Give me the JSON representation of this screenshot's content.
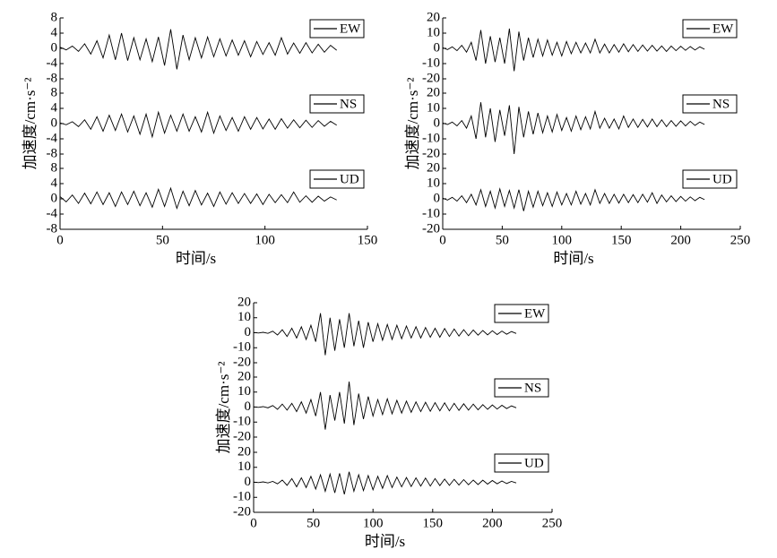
{
  "chart_data": [
    {
      "type": "line",
      "x_label": "时间/s",
      "y_label": "加速度/cm·s⁻²",
      "xlim": [
        0,
        150
      ],
      "xticks": [
        0,
        50,
        100,
        150
      ],
      "x": [
        0,
        3,
        6,
        9,
        12,
        15,
        18,
        21,
        24,
        27,
        30,
        33,
        36,
        39,
        42,
        45,
        48,
        51,
        54,
        57,
        60,
        63,
        66,
        69,
        72,
        75,
        78,
        81,
        84,
        87,
        90,
        93,
        96,
        99,
        102,
        105,
        108,
        111,
        114,
        117,
        120,
        123,
        126,
        129,
        132,
        135
      ],
      "series": [
        {
          "name": "EW",
          "color": "#000000",
          "ylim": [
            -8,
            8
          ],
          "yticks": [
            -8,
            -4,
            0,
            4,
            8
          ],
          "values": [
            0.3,
            -0.4,
            0.6,
            -0.8,
            1.2,
            -1.5,
            2,
            -2.5,
            3.5,
            -3,
            4,
            -3.2,
            2.8,
            -3,
            2.5,
            -3.5,
            3,
            -4.5,
            5,
            -5.5,
            3.5,
            -3,
            2.8,
            -2.5,
            3,
            -2.2,
            2.5,
            -2,
            2.2,
            -1.8,
            2,
            -2.2,
            1.8,
            -1.6,
            1.5,
            -1.8,
            2.8,
            -1.5,
            1.4,
            -1.3,
            1.5,
            -1.2,
            1.1,
            -1,
            0.8,
            -0.5
          ]
        },
        {
          "name": "NS",
          "color": "#000000",
          "ylim": [
            -8,
            8
          ],
          "yticks": [
            -8,
            -4,
            0,
            4,
            8
          ],
          "values": [
            0.2,
            -0.3,
            0.5,
            -0.8,
            1,
            -1.5,
            1.8,
            -2,
            2.2,
            -1.8,
            2.5,
            -2.2,
            2,
            -2.8,
            2.5,
            -3.5,
            3,
            -2.5,
            2.2,
            -2,
            2.5,
            -2,
            1.8,
            -2.2,
            3,
            -2.5,
            2,
            -1.8,
            1.6,
            -2,
            1.8,
            -1.5,
            1.6,
            -1.4,
            1.2,
            -1.5,
            1.3,
            -1.2,
            1,
            -1.1,
            0.9,
            -1,
            0.8,
            -0.7,
            0.6,
            -0.4
          ]
        },
        {
          "name": "UD",
          "color": "#000000",
          "ylim": [
            -8,
            8
          ],
          "yticks": [
            -8,
            -4,
            0,
            4,
            8
          ],
          "values": [
            0.6,
            -0.8,
            1,
            -1.2,
            1.5,
            -1.3,
            1.8,
            -1.5,
            1.6,
            -2,
            1.8,
            -1.5,
            2,
            -1.8,
            1.6,
            -2.2,
            2.5,
            -2,
            2.8,
            -2.5,
            2,
            -1.8,
            2.2,
            -1.6,
            1.5,
            -2,
            1.8,
            -1.4,
            1.6,
            -1.2,
            1.4,
            -1.2,
            1.3,
            -1.5,
            1.2,
            -1,
            1.1,
            -1,
            1.8,
            -0.9,
            0.8,
            -0.9,
            0.7,
            -0.6,
            0.5,
            -0.3
          ]
        }
      ]
    },
    {
      "type": "line",
      "x_label": "时间/s",
      "y_label": "加速度/cm·s⁻²",
      "xlim": [
        0,
        250
      ],
      "xticks": [
        0,
        50,
        100,
        150,
        200,
        250
      ],
      "x": [
        0,
        4,
        8,
        12,
        16,
        20,
        24,
        28,
        32,
        36,
        40,
        44,
        48,
        52,
        56,
        60,
        64,
        68,
        72,
        76,
        80,
        84,
        88,
        92,
        96,
        100,
        104,
        108,
        112,
        116,
        120,
        124,
        128,
        132,
        136,
        140,
        144,
        148,
        152,
        156,
        160,
        164,
        168,
        172,
        176,
        180,
        184,
        188,
        192,
        196,
        200,
        204,
        208,
        212,
        216,
        220
      ],
      "series": [
        {
          "name": "EW",
          "color": "#000000",
          "ylim": [
            -20,
            20
          ],
          "yticks": [
            -20,
            -10,
            0,
            10,
            20
          ],
          "values": [
            0.5,
            -0.8,
            1,
            -1.5,
            2,
            -2.5,
            4,
            -8,
            12,
            -10,
            8,
            -9,
            7,
            -10,
            13,
            -15,
            11,
            -8,
            7,
            -6,
            6,
            -5,
            5.5,
            -4.5,
            4,
            -5,
            4.5,
            -3.5,
            4,
            -3,
            3.5,
            -3,
            6,
            -3,
            2.8,
            -3,
            2.5,
            -2.5,
            3,
            -2.2,
            2.5,
            -2,
            2.2,
            -1.8,
            2,
            -1.8,
            1.6,
            -2,
            1.5,
            -1.5,
            1.4,
            -1.3,
            1.2,
            -1.1,
            1,
            -0.6
          ]
        },
        {
          "name": "NS",
          "color": "#000000",
          "ylim": [
            -20,
            20
          ],
          "yticks": [
            -20,
            -10,
            0,
            10,
            20
          ],
          "values": [
            0.4,
            -0.6,
            1,
            -1.5,
            2,
            -3,
            5,
            -10,
            14,
            -9,
            10,
            -12,
            9,
            -8,
            12,
            -20,
            11,
            -9,
            8,
            -7,
            7,
            -6,
            5,
            -5.5,
            6,
            -4.5,
            4,
            -5,
            5,
            -4,
            4.5,
            -3.5,
            8,
            -3,
            3.5,
            -3,
            3,
            -3.5,
            5,
            -2.5,
            3,
            -2.5,
            2.8,
            -2.2,
            3,
            -2,
            2.5,
            -2,
            2,
            -1.8,
            1.8,
            -1.5,
            1.5,
            -1.2,
            1,
            -0.6
          ]
        },
        {
          "name": "UD",
          "color": "#000000",
          "ylim": [
            -20,
            20
          ],
          "yticks": [
            -20,
            -10,
            0,
            10,
            20
          ],
          "values": [
            0.5,
            -0.8,
            1,
            -1.5,
            2,
            -2.5,
            3,
            -4,
            6,
            -5,
            5,
            -6,
            6.5,
            -5,
            5.5,
            -6,
            6,
            -8,
            5,
            -5.5,
            5,
            -4.5,
            4,
            -5,
            4.5,
            -4,
            3.5,
            -4,
            5,
            -3.5,
            3.5,
            -4,
            6,
            -3,
            3.5,
            -3,
            3,
            -2.8,
            3,
            -2.5,
            2.8,
            -2.5,
            3,
            -2.2,
            4,
            -3,
            2.5,
            -2,
            2,
            -1.8,
            1.6,
            -1.5,
            1.3,
            -1.2,
            1,
            -0.5
          ]
        }
      ]
    },
    {
      "type": "line",
      "x_label": "时间/s",
      "y_label": "加速度/cm·s⁻²",
      "xlim": [
        0,
        250
      ],
      "xticks": [
        0,
        50,
        100,
        150,
        200,
        250
      ],
      "x": [
        0,
        4,
        8,
        12,
        16,
        20,
        24,
        28,
        32,
        36,
        40,
        44,
        48,
        52,
        56,
        60,
        64,
        68,
        72,
        76,
        80,
        84,
        88,
        92,
        96,
        100,
        104,
        108,
        112,
        116,
        120,
        124,
        128,
        132,
        136,
        140,
        144,
        148,
        152,
        156,
        160,
        164,
        168,
        172,
        176,
        180,
        184,
        188,
        192,
        196,
        200,
        204,
        208,
        212,
        216,
        220
      ],
      "series": [
        {
          "name": "EW",
          "color": "#000000",
          "ylim": [
            -20,
            20
          ],
          "yticks": [
            -20,
            -10,
            0,
            10,
            20
          ],
          "values": [
            0.2,
            -0.2,
            0.3,
            -0.4,
            1,
            -1.5,
            2,
            -2.5,
            3,
            -3.5,
            4,
            -4.5,
            5,
            -6,
            13,
            -15,
            10,
            -12,
            9,
            -10,
            13,
            -9,
            8,
            -10,
            7,
            -6,
            6,
            -5,
            5.5,
            -4.5,
            5,
            -4,
            4.5,
            -3.5,
            4,
            -3.5,
            3.5,
            -3,
            3,
            -3,
            2.8,
            -2.5,
            2.5,
            -2.2,
            2,
            -2,
            1.8,
            -1.6,
            1.5,
            -1.4,
            1.3,
            -1.2,
            1.1,
            -1,
            0.8,
            -0.5
          ]
        },
        {
          "name": "NS",
          "color": "#000000",
          "ylim": [
            -20,
            20
          ],
          "yticks": [
            -20,
            -10,
            0,
            10,
            20
          ],
          "values": [
            0.2,
            -0.2,
            0.3,
            -0.5,
            1,
            -1.5,
            2,
            -2,
            2.5,
            -3,
            3.5,
            -4,
            5,
            -6,
            10,
            -15,
            8,
            -9,
            10,
            -11,
            17,
            -12,
            9,
            -8,
            7,
            -6,
            5,
            -5,
            5.5,
            -4.5,
            4.5,
            -4,
            4,
            -3.5,
            3.5,
            -3,
            3.2,
            -2.8,
            3,
            -2.5,
            2.8,
            -2.5,
            2.5,
            -2.2,
            2.2,
            -2,
            2,
            -1.8,
            1.6,
            -1.5,
            1.4,
            -1.3,
            1.2,
            -1,
            0.8,
            -0.5
          ]
        },
        {
          "name": "UD",
          "color": "#000000",
          "ylim": [
            -20,
            20
          ],
          "yticks": [
            -20,
            -10,
            0,
            10,
            20
          ],
          "values": [
            0.2,
            -0.2,
            0.3,
            -0.4,
            0.6,
            -1,
            1.5,
            -2,
            2.5,
            -3,
            3,
            -3.5,
            4,
            -4.5,
            5,
            -6,
            5.5,
            -7,
            6,
            -8,
            7,
            -6,
            5,
            -5.5,
            4.5,
            -5,
            4,
            -4,
            4.5,
            -3.5,
            3.5,
            -3,
            3.2,
            -2.8,
            3,
            -2.5,
            2.8,
            -2.5,
            2.5,
            -2.2,
            2.2,
            -2,
            2,
            -1.8,
            1.8,
            -1.6,
            1.5,
            -1.5,
            1.4,
            -1.2,
            1.2,
            -1,
            0.9,
            -0.8,
            0.6,
            -0.4
          ]
        }
      ]
    }
  ]
}
